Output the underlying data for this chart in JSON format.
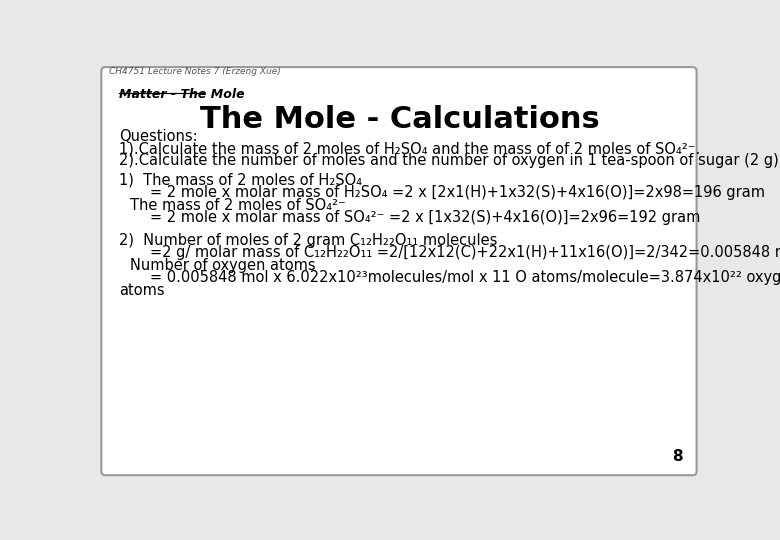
{
  "bg_color": "#e8e8e8",
  "slide_bg": "#ffffff",
  "border_color": "#999999",
  "top_label": "CH4751 Lecture Notes 7 (Erzeng Xue)",
  "section_label": "Matter - The Mole",
  "title": "The Mole - Calculations",
  "page_number": "8",
  "font_color": "#000000",
  "title_fontsize": 22,
  "body_fontsize": 10.5,
  "small_fontsize": 9
}
